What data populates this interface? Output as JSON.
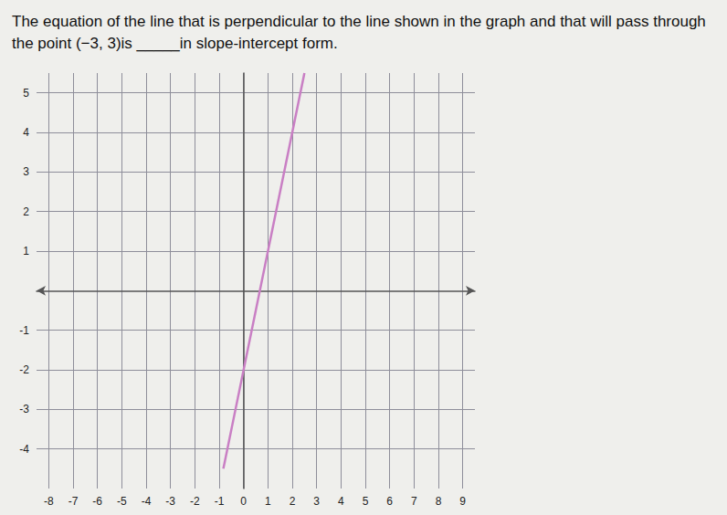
{
  "chart_data": {
    "type": "line",
    "title": "The equation of the line that is perpendicular to the line shown in the graph and that will pass through the point (−3, 3)is _____in slope-intercept form.",
    "x": [
      -0.83,
      2.5
    ],
    "values": [
      -4.5,
      5.5
    ],
    "color": "#c97fc4",
    "xlim": [
      -8.5,
      9.5
    ],
    "xticks": [
      -8,
      -7,
      -6,
      -5,
      -4,
      -3,
      -2,
      -1,
      0,
      1,
      2,
      3,
      4,
      5,
      6,
      7,
      8,
      9
    ],
    "ylim": [
      -5,
      5.5
    ],
    "yticks": [
      -4,
      -3,
      -2,
      -1,
      1,
      2,
      3,
      4,
      5
    ],
    "grid": true
  }
}
